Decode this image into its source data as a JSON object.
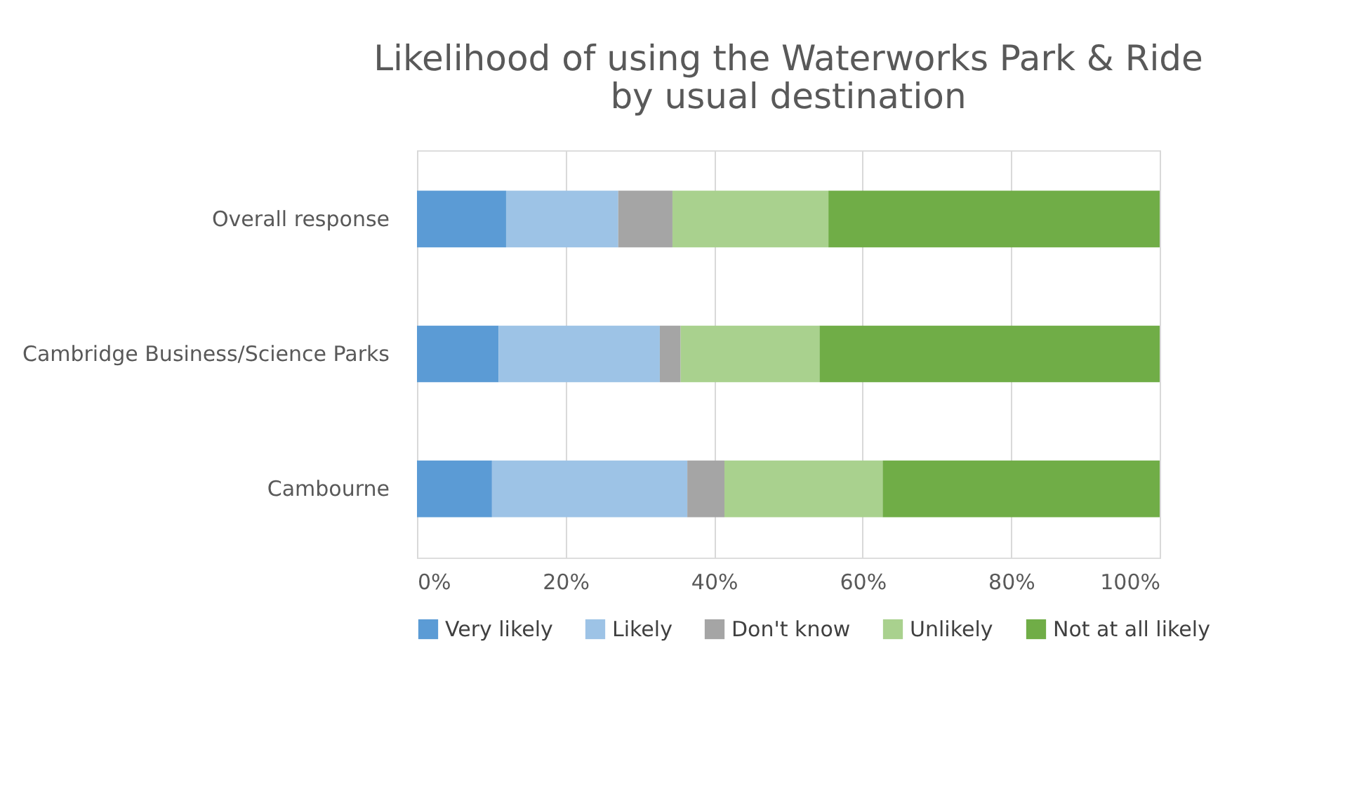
{
  "chart_data": {
    "type": "bar",
    "orientation": "horizontal",
    "stacked": true,
    "title": [
      "Likelihood of using the Waterworks Park & Ride",
      "by usual destination"
    ],
    "categories": [
      "Overall response",
      "Cambridge Business/Science Parks",
      "Cambourne"
    ],
    "series": [
      {
        "name": "Very likely",
        "color": "#5b9bd5",
        "values": [
          12.0,
          11.0,
          10.1
        ]
      },
      {
        "name": "Likely",
        "color": "#9dc3e6",
        "values": [
          15.1,
          21.7,
          26.3
        ]
      },
      {
        "name": "Don't know",
        "color": "#a5a5a5",
        "values": [
          7.3,
          2.8,
          5.0
        ]
      },
      {
        "name": "Unlikely",
        "color": "#a9d18e",
        "values": [
          21.0,
          18.7,
          21.3
        ]
      },
      {
        "name": "Not at all likely",
        "color": "#70ad47",
        "values": [
          44.6,
          45.8,
          37.3
        ]
      }
    ],
    "xlim": [
      0,
      100
    ],
    "xticks": [
      {
        "value": 0,
        "label": "0%"
      },
      {
        "value": 20,
        "label": "20%"
      },
      {
        "value": 40,
        "label": "40%"
      },
      {
        "value": 60,
        "label": "60%"
      },
      {
        "value": 80,
        "label": "80%"
      },
      {
        "value": 100,
        "label": "100%"
      }
    ],
    "grid": "x",
    "legend": "bottom"
  }
}
